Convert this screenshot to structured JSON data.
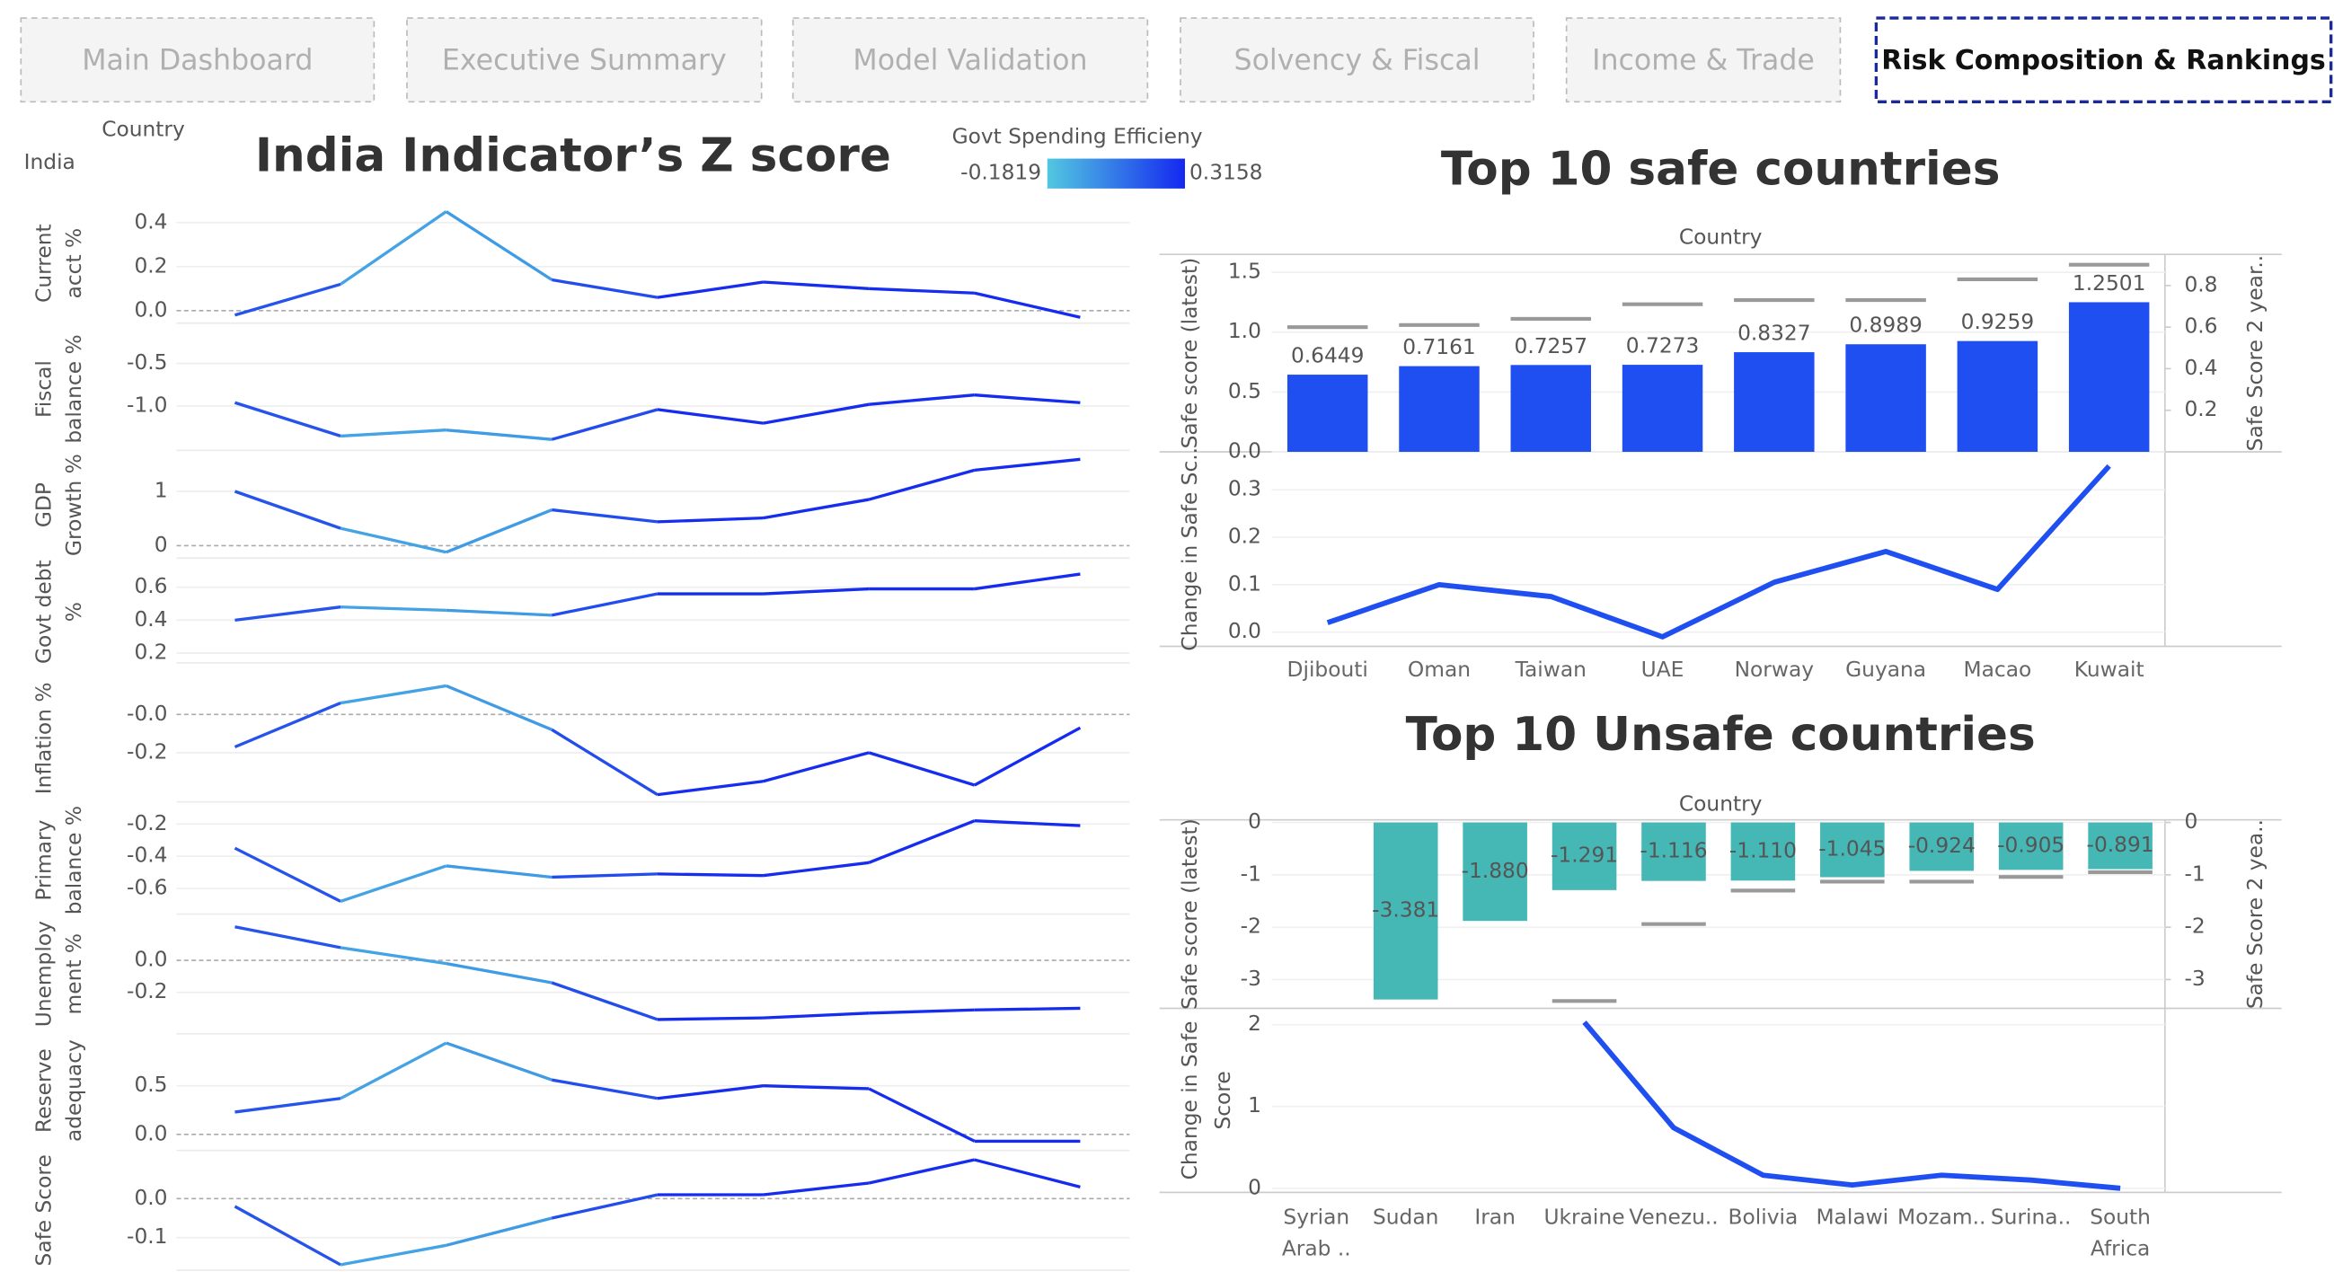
{
  "nav": {
    "tabs": [
      "Main Dashboard",
      "Executive Summary",
      "Model Validation",
      "Solvency & Fiscal",
      "Income & Trade",
      "Risk Composition & Rankings"
    ],
    "active": 5
  },
  "filter": {
    "label": "Country",
    "value": "India"
  },
  "chart_data": [
    {
      "type": "line",
      "title": "India Indicator’s Z score",
      "color_legend": {
        "title": "Govt Spending Efficieny",
        "range": [
          -0.1819,
          0.3158
        ],
        "colors": [
          "#52c8e0",
          "#1428f0"
        ]
      },
      "color_values": [
        0.3158,
        0.05,
        -0.1819,
        0.1,
        0.3,
        0.3,
        0.3,
        0.3,
        0.3158
      ],
      "panels": [
        {
          "label": [
            "Current",
            "acct %"
          ],
          "ylim": [
            -0.05,
            0.48
          ],
          "yticks": [
            0.4,
            0.2,
            {
              "value": 0,
              "label": "0.0"
            }
          ],
          "values": [
            -0.02,
            0.12,
            0.45,
            0.14,
            0.06,
            0.13,
            0.1,
            0.08,
            -0.03
          ]
        },
        {
          "label": [
            "Fiscal",
            "balance %"
          ],
          "ylim": [
            -1.5,
            -0.1
          ],
          "yticks": [
            -0.5,
            {
              "value": -1,
              "label": "-1.0"
            }
          ],
          "values": [
            -0.96,
            -1.35,
            -1.28,
            -1.39,
            -1.04,
            -1.2,
            -0.98,
            -0.87,
            -0.96
          ]
        },
        {
          "label": [
            "GDP",
            "Growth %"
          ],
          "ylim": [
            -0.2,
            1.7
          ],
          "yticks": [
            1,
            0
          ],
          "values": [
            1.0,
            0.32,
            -0.12,
            0.66,
            0.44,
            0.51,
            0.85,
            1.39,
            1.59
          ]
        },
        {
          "label": [
            "Govt debt",
            "%"
          ],
          "ylim": [
            0.15,
            0.75
          ],
          "yticks": [
            0.6,
            0.4,
            0.2
          ],
          "values": [
            0.4,
            0.48,
            0.46,
            0.43,
            0.56,
            0.56,
            0.59,
            0.59,
            0.68
          ]
        },
        {
          "label": [
            "Inflation %"
          ],
          "ylim": [
            -0.45,
            0.2
          ],
          "yticks": [
            {
              "value": 0,
              "label": "-0.0"
            },
            -0.2
          ],
          "values": [
            -0.17,
            0.06,
            0.15,
            -0.08,
            -0.42,
            -0.35,
            -0.2,
            -0.37,
            -0.07
          ]
        },
        {
          "label": [
            "Primary",
            "balance %"
          ],
          "ylim": [
            -0.75,
            -0.1
          ],
          "yticks": [
            -0.2,
            -0.4,
            -0.6
          ],
          "values": [
            -0.35,
            -0.68,
            -0.46,
            -0.53,
            -0.51,
            -0.52,
            -0.44,
            -0.18,
            -0.21
          ]
        },
        {
          "label": [
            "Unemploy",
            "ment %"
          ],
          "ylim": [
            -0.45,
            0.28
          ],
          "yticks": [
            {
              "value": 0,
              "label": "0.0"
            },
            -0.2
          ],
          "values": [
            0.21,
            0.08,
            -0.02,
            -0.14,
            -0.37,
            -0.36,
            -0.33,
            -0.31,
            -0.3
          ]
        },
        {
          "label": [
            "Reserve",
            "adequacy"
          ],
          "ylim": [
            -0.15,
            1.05
          ],
          "yticks": [
            0.5,
            {
              "value": 0,
              "label": "0.0"
            }
          ],
          "values": [
            0.23,
            0.37,
            0.94,
            0.56,
            0.37,
            0.5,
            0.47,
            -0.07,
            -0.07
          ]
        },
        {
          "label": [
            "Safe Score"
          ],
          "ylim": [
            -0.18,
            0.12
          ],
          "yticks": [
            {
              "value": 0,
              "label": "0.0"
            },
            -0.1
          ],
          "values": [
            -0.02,
            -0.17,
            -0.12,
            -0.05,
            0.01,
            0.01,
            0.04,
            0.1,
            0.03
          ]
        }
      ]
    },
    {
      "type": "combo",
      "title": "Top 10 safe countries",
      "x_title": "Country",
      "categories": [
        "Djibouti",
        "Oman",
        "Taiwan",
        "UAE",
        "Norway",
        "Guyana",
        "Macao",
        "Kuwait"
      ],
      "bars": {
        "axis_label": [
          "Safe score (latest)"
        ],
        "color": "#1f4ff0",
        "ylim": [
          0,
          1.65
        ],
        "yticks": [
          {
            "value": 1.5,
            "label": "1.5"
          },
          {
            "value": 1,
            "label": "1.0"
          },
          0.5,
          {
            "value": 0,
            "label": "0.0"
          }
        ],
        "values": [
          0.6449,
          0.7161,
          0.7257,
          0.7273,
          0.8327,
          0.8989,
          0.9259,
          1.2501
        ]
      },
      "markers": {
        "axis_label": [
          "Safe Score 2 year.."
        ],
        "color": "#999999",
        "ylim": [
          0,
          0.95
        ],
        "yticks": [
          0.8,
          0.6,
          0.4,
          0.2
        ],
        "values": [
          0.6,
          0.61,
          0.64,
          0.71,
          0.73,
          0.73,
          0.83,
          0.9
        ]
      },
      "line": {
        "axis_label": [
          "Change in Safe Sc.."
        ],
        "color": "#1f4ff0",
        "ylim": [
          -0.03,
          0.38
        ],
        "yticks": [
          0.3,
          0.2,
          0.1,
          {
            "value": 0,
            "label": "0.0"
          }
        ],
        "values": [
          0.02,
          0.1,
          0.075,
          -0.01,
          0.105,
          0.17,
          0.09,
          0.35
        ]
      }
    },
    {
      "type": "combo",
      "title": "Top 10 Unsafe countries",
      "x_title": "Country",
      "categories": [
        "Syrian Arab ..",
        "Sudan",
        "Iran",
        "Ukraine",
        "Venezu..",
        "Bolivia",
        "Malawi",
        "Mozam..",
        "Surina..",
        "South Africa"
      ],
      "bars": {
        "axis_label": [
          "Safe score (latest)"
        ],
        "color": "#45b8b5",
        "ylim": [
          -3.55,
          0.05
        ],
        "yticks": [
          0,
          -1,
          -2,
          -3
        ],
        "values": [
          null,
          -3.381,
          -1.88,
          -1.291,
          -1.116,
          -1.11,
          -1.045,
          -0.924,
          -0.905,
          -0.891
        ],
        "value_labels": [
          null,
          "-3.381",
          "-1.880",
          "-1.291",
          "-1.116",
          "-1.110",
          "-1.045",
          "-0.924",
          "-0.905",
          "-0.891"
        ]
      },
      "markers": {
        "axis_label": [
          "Safe Score 2 yea.."
        ],
        "color": "#999999",
        "ylim": [
          -3.55,
          0.05
        ],
        "yticks": [
          0,
          -1,
          -2,
          -3
        ],
        "values": [
          null,
          null,
          null,
          -3.41,
          -1.94,
          -1.3,
          -1.13,
          -1.13,
          -1.04,
          -0.95
        ]
      },
      "line": {
        "axis_label": [
          "Change in Safe",
          "Score"
        ],
        "color": "#1f4ff0",
        "ylim": [
          -0.05,
          2.2
        ],
        "yticks": [
          2,
          1,
          0
        ],
        "values": [
          null,
          null,
          null,
          2.03,
          0.74,
          0.16,
          0.04,
          0.16,
          0.1,
          0.0
        ]
      }
    }
  ]
}
